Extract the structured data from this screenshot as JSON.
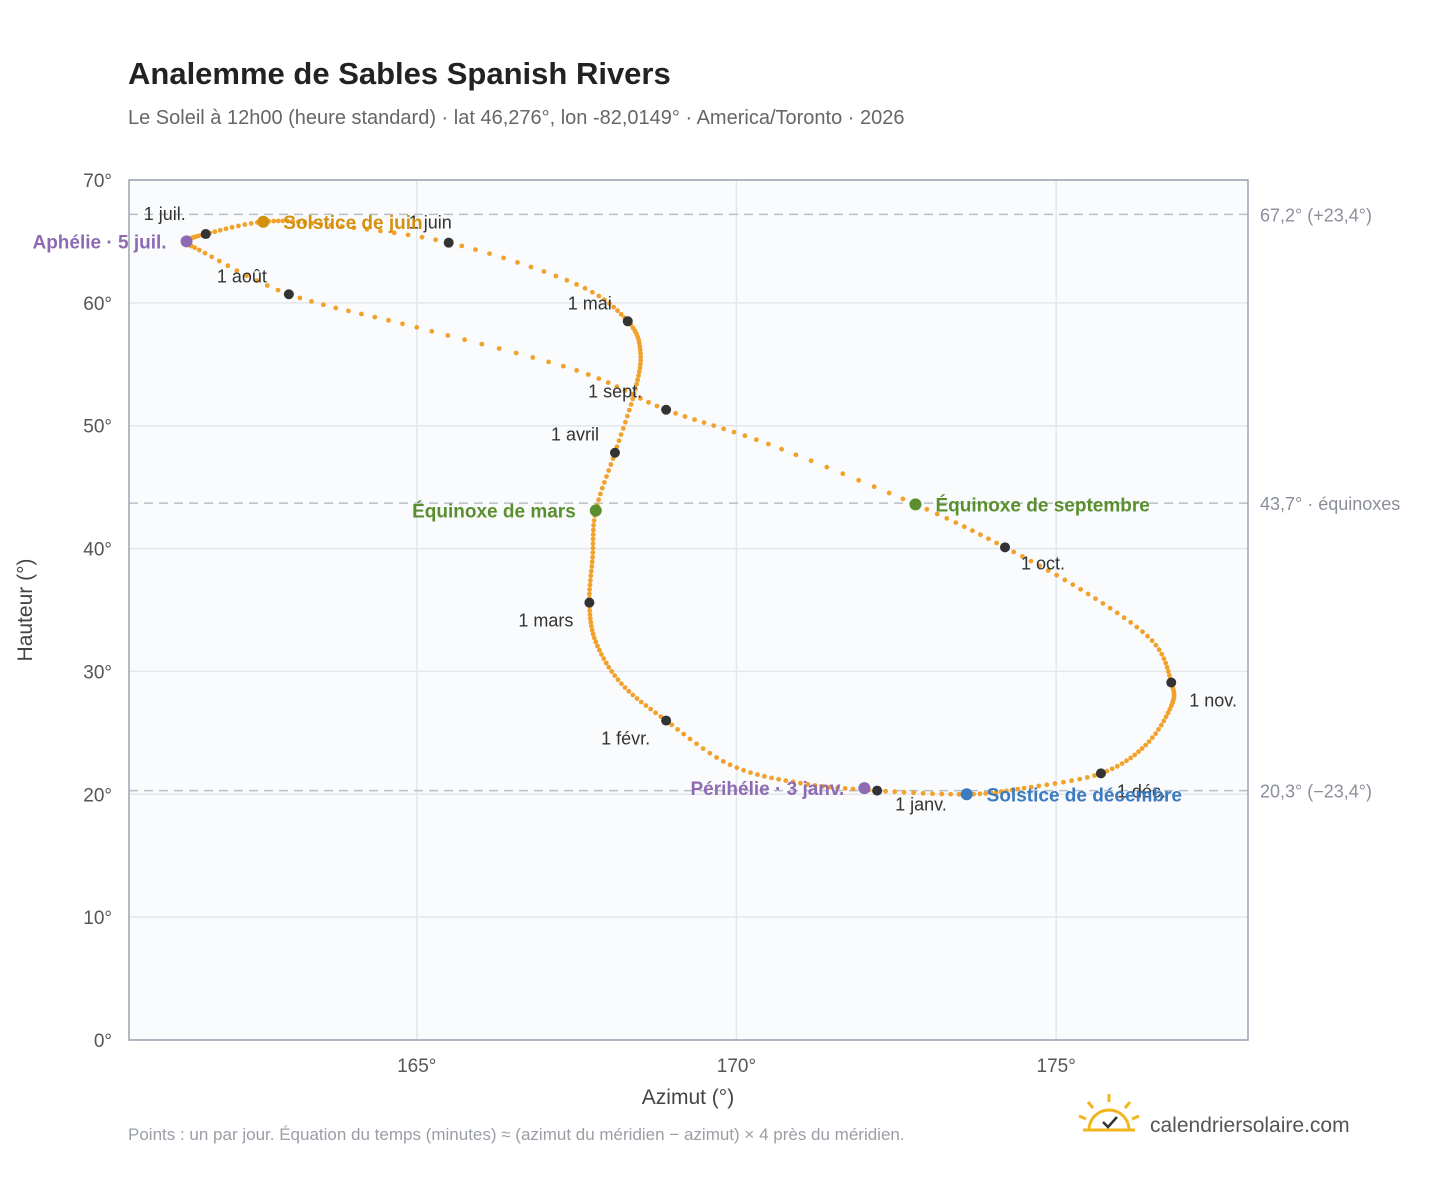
{
  "colors": {
    "curve": "#F2A22C",
    "month_dot": "#333333",
    "solstice_june": "#D4900F",
    "solstice_dec": "#3B7BBF",
    "equinox": "#5A8F2E",
    "apsis": "#8E6AB3",
    "grid": "#e4e7ec",
    "plot_bg": "#f9fbfd",
    "frame": "#9aa3b0",
    "ref_line": "#b8bfc8",
    "logo": "#F2B51C"
  },
  "footnote": "Points : un par jour. Équation du temps (minutes) ≈ (azimut du méridien − azimut) × 4 près du méridien.",
  "brand": {
    "text": "calendriersolaire.com",
    "icon": "sun-check-icon"
  },
  "chart_data": {
    "type": "scatter",
    "title": "Analemme de Sables Spanish Rivers",
    "subtitle": "Le Soleil à 12h00 (heure standard) · lat 46,276°, lon -82,0149° · America/Toronto · 2026",
    "xlabel": "Azimut (°)",
    "ylabel": "Hauteur (°)",
    "xlim": [
      160.5,
      178
    ],
    "ylim": [
      0,
      70
    ],
    "xticks": [
      {
        "v": 165,
        "label": "165°"
      },
      {
        "v": 170,
        "label": "170°"
      },
      {
        "v": 175,
        "label": "175°"
      }
    ],
    "yticks": [
      {
        "v": 0,
        "label": "0°"
      },
      {
        "v": 10,
        "label": "10°"
      },
      {
        "v": 20,
        "label": "20°"
      },
      {
        "v": 30,
        "label": "30°"
      },
      {
        "v": 40,
        "label": "40°"
      },
      {
        "v": 50,
        "label": "50°"
      },
      {
        "v": 60,
        "label": "60°"
      },
      {
        "v": 70,
        "label": "70°"
      }
    ],
    "grid": true,
    "reference_lines": [
      {
        "y": 67.2,
        "label": "67,2° (+23,4°)"
      },
      {
        "y": 43.7,
        "label": "43,7° · équinoxes"
      },
      {
        "y": 20.3,
        "label": "20,3° (−23,4°)"
      }
    ],
    "curve": [
      [
        172.2,
        20.3
      ],
      [
        171.0,
        20.9
      ],
      [
        169.9,
        22.4
      ],
      [
        168.9,
        26.0
      ],
      [
        168.2,
        29.0
      ],
      [
        167.8,
        32.4
      ],
      [
        167.7,
        35.6
      ],
      [
        167.75,
        39.3
      ],
      [
        167.8,
        43.1
      ],
      [
        168.1,
        47.8
      ],
      [
        168.4,
        52.6
      ],
      [
        168.5,
        55.9
      ],
      [
        168.3,
        58.5
      ],
      [
        167.5,
        61.5
      ],
      [
        165.5,
        64.9
      ],
      [
        163.5,
        66.4
      ],
      [
        162.6,
        66.6
      ],
      [
        161.7,
        65.6
      ],
      [
        161.4,
        65.0
      ],
      [
        161.6,
        64.3
      ],
      [
        163.0,
        60.7
      ],
      [
        165.0,
        58.0
      ],
      [
        167.5,
        54.5
      ],
      [
        168.9,
        51.3
      ],
      [
        170.5,
        48.5
      ],
      [
        172.8,
        43.6
      ],
      [
        174.2,
        40.1
      ],
      [
        175.5,
        36.3
      ],
      [
        176.5,
        32.5
      ],
      [
        176.8,
        29.1
      ],
      [
        176.8,
        27.2
      ],
      [
        176.4,
        24.0
      ],
      [
        175.7,
        21.7
      ],
      [
        174.5,
        20.5
      ],
      [
        173.6,
        20.0
      ],
      [
        172.2,
        20.3
      ]
    ],
    "months": [
      {
        "label": "1 janv.",
        "az": 172.2,
        "alt": 20.3
      },
      {
        "label": "1 févr.",
        "az": 168.9,
        "alt": 26.0
      },
      {
        "label": "1 mars",
        "az": 167.7,
        "alt": 35.6
      },
      {
        "label": "1 avril",
        "az": 168.1,
        "alt": 47.8
      },
      {
        "label": "1 mai",
        "az": 168.3,
        "alt": 58.5
      },
      {
        "label": "1 juin",
        "az": 165.5,
        "alt": 64.9
      },
      {
        "label": "1 juil.",
        "az": 161.7,
        "alt": 65.6
      },
      {
        "label": "1 août",
        "az": 163.0,
        "alt": 60.7
      },
      {
        "label": "1 sept.",
        "az": 168.9,
        "alt": 51.3
      },
      {
        "label": "1 oct.",
        "az": 174.2,
        "alt": 40.1
      },
      {
        "label": "1 nov.",
        "az": 176.8,
        "alt": 29.1
      },
      {
        "label": "1 déc.",
        "az": 175.7,
        "alt": 21.7
      }
    ],
    "events": [
      {
        "label": "Solstice de juin",
        "az": 162.6,
        "alt": 66.6,
        "color": "#D4900F"
      },
      {
        "label": "Solstice de décembre",
        "az": 173.6,
        "alt": 20.0,
        "color": "#3B7BBF"
      },
      {
        "label": "Équinoxe de mars",
        "az": 167.8,
        "alt": 43.1,
        "color": "#5A8F2E"
      },
      {
        "label": "Équinoxe de septembre",
        "az": 172.8,
        "alt": 43.6,
        "color": "#5A8F2E"
      },
      {
        "label": "Aphélie · 5 juil.",
        "az": 161.4,
        "alt": 65.0,
        "color": "#8E6AB3"
      },
      {
        "label": "Périhélie · 3 janv.",
        "az": 172.0,
        "alt": 20.5,
        "color": "#8E6AB3"
      }
    ]
  }
}
